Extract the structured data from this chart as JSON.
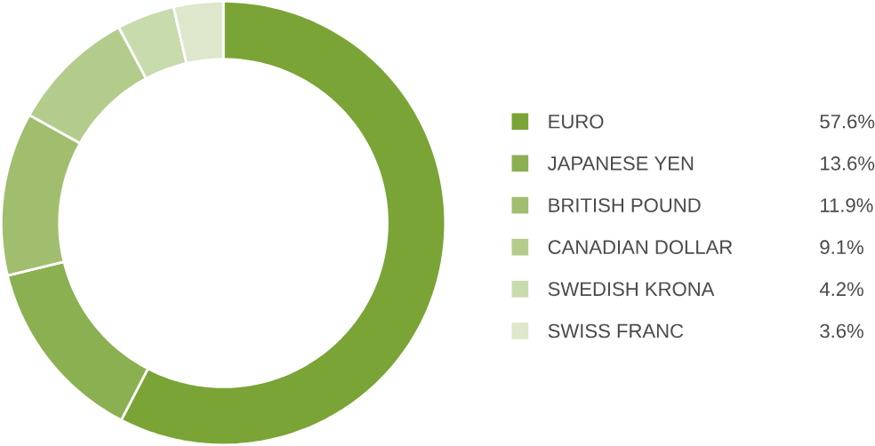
{
  "chart_data": {
    "type": "donut",
    "categories": [
      "EURO",
      "JAPANESE YEN",
      "BRITISH POUND",
      "CANADIAN DOLLAR",
      "SWEDISH KRONA",
      "SWISS FRANC"
    ],
    "values": [
      57.6,
      13.6,
      11.9,
      9.1,
      4.2,
      3.6
    ],
    "value_labels": [
      "57.6%",
      "13.6%",
      "11.9%",
      "9.1%",
      "4.2%",
      "3.6%"
    ],
    "colors": [
      "#7aa436",
      "#8bb052",
      "#a0be6e",
      "#b3cc8c",
      "#c8dbad",
      "#dde7cb"
    ],
    "legend": "right"
  }
}
